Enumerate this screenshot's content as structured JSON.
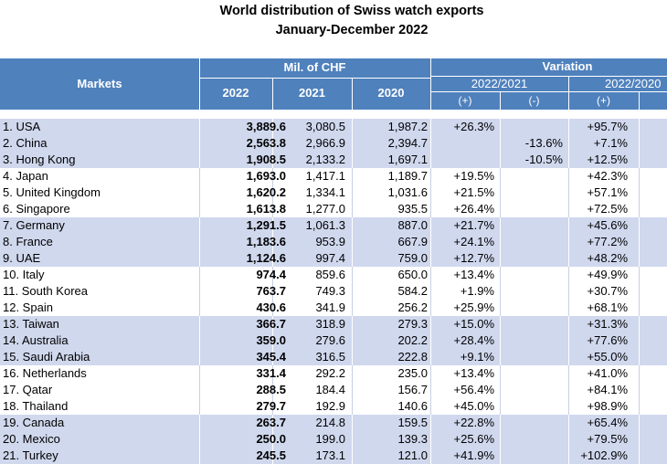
{
  "title": "World distribution of Swiss watch exports",
  "subtitle": "January-December 2022",
  "header": {
    "markets": "Markets",
    "mil_chf": "Mil. of CHF",
    "variation": "Variation",
    "year_2022": "2022",
    "year_2021": "2021",
    "year_2020": "2020",
    "var_2022_2021": "2022/2021",
    "var_2022_2020": "2022/2020",
    "plus": "(+)",
    "minus": "(-)"
  },
  "rows": [
    {
      "market": "1. USA",
      "v2022": "3,889.6",
      "v2021": "3,080.5",
      "v2020": "1,987.2",
      "pos_21": "+26.3%",
      "neg_21": "",
      "pos_20": "+95.7%"
    },
    {
      "market": "2. China",
      "v2022": "2,563.8",
      "v2021": "2,966.9",
      "v2020": "2,394.7",
      "pos_21": "",
      "neg_21": "-13.6%",
      "pos_20": "+7.1%"
    },
    {
      "market": "3. Hong Kong",
      "v2022": "1,908.5",
      "v2021": "2,133.2",
      "v2020": "1,697.1",
      "pos_21": "",
      "neg_21": "-10.5%",
      "pos_20": "+12.5%"
    },
    {
      "market": "4. Japan",
      "v2022": "1,693.0",
      "v2021": "1,417.1",
      "v2020": "1,189.7",
      "pos_21": "+19.5%",
      "neg_21": "",
      "pos_20": "+42.3%"
    },
    {
      "market": "5. United Kingdom",
      "v2022": "1,620.2",
      "v2021": "1,334.1",
      "v2020": "1,031.6",
      "pos_21": "+21.5%",
      "neg_21": "",
      "pos_20": "+57.1%"
    },
    {
      "market": "6. Singapore",
      "v2022": "1,613.8",
      "v2021": "1,277.0",
      "v2020": "935.5",
      "pos_21": "+26.4%",
      "neg_21": "",
      "pos_20": "+72.5%"
    },
    {
      "market": "7. Germany",
      "v2022": "1,291.5",
      "v2021": "1,061.3",
      "v2020": "887.0",
      "pos_21": "+21.7%",
      "neg_21": "",
      "pos_20": "+45.6%"
    },
    {
      "market": "8. France",
      "v2022": "1,183.6",
      "v2021": "953.9",
      "v2020": "667.9",
      "pos_21": "+24.1%",
      "neg_21": "",
      "pos_20": "+77.2%"
    },
    {
      "market": "9. UAE",
      "v2022": "1,124.6",
      "v2021": "997.4",
      "v2020": "759.0",
      "pos_21": "+12.7%",
      "neg_21": "",
      "pos_20": "+48.2%"
    },
    {
      "market": "10. Italy",
      "v2022": "974.4",
      "v2021": "859.6",
      "v2020": "650.0",
      "pos_21": "+13.4%",
      "neg_21": "",
      "pos_20": "+49.9%"
    },
    {
      "market": "11. South Korea",
      "v2022": "763.7",
      "v2021": "749.3",
      "v2020": "584.2",
      "pos_21": "+1.9%",
      "neg_21": "",
      "pos_20": "+30.7%"
    },
    {
      "market": "12. Spain",
      "v2022": "430.6",
      "v2021": "341.9",
      "v2020": "256.2",
      "pos_21": "+25.9%",
      "neg_21": "",
      "pos_20": "+68.1%"
    },
    {
      "market": "13. Taiwan",
      "v2022": "366.7",
      "v2021": "318.9",
      "v2020": "279.3",
      "pos_21": "+15.0%",
      "neg_21": "",
      "pos_20": "+31.3%"
    },
    {
      "market": "14. Australia",
      "v2022": "359.0",
      "v2021": "279.6",
      "v2020": "202.2",
      "pos_21": "+28.4%",
      "neg_21": "",
      "pos_20": "+77.6%"
    },
    {
      "market": "15. Saudi Arabia",
      "v2022": "345.4",
      "v2021": "316.5",
      "v2020": "222.8",
      "pos_21": "+9.1%",
      "neg_21": "",
      "pos_20": "+55.0%"
    },
    {
      "market": "16. Netherlands",
      "v2022": "331.4",
      "v2021": "292.2",
      "v2020": "235.0",
      "pos_21": "+13.4%",
      "neg_21": "",
      "pos_20": "+41.0%"
    },
    {
      "market": "17. Qatar",
      "v2022": "288.5",
      "v2021": "184.4",
      "v2020": "156.7",
      "pos_21": "+56.4%",
      "neg_21": "",
      "pos_20": "+84.1%"
    },
    {
      "market": "18. Thailand",
      "v2022": "279.7",
      "v2021": "192.9",
      "v2020": "140.6",
      "pos_21": "+45.0%",
      "neg_21": "",
      "pos_20": "+98.9%"
    },
    {
      "market": "19. Canada",
      "v2022": "263.7",
      "v2021": "214.8",
      "v2020": "159.5",
      "pos_21": "+22.8%",
      "neg_21": "",
      "pos_20": "+65.4%"
    },
    {
      "market": "20. Mexico",
      "v2022": "250.0",
      "v2021": "199.0",
      "v2020": "139.3",
      "pos_21": "+25.6%",
      "neg_21": "",
      "pos_20": "+79.5%"
    },
    {
      "market": "21. Turkey",
      "v2022": "245.5",
      "v2021": "173.1",
      "v2020": "121.0",
      "pos_21": "+41.9%",
      "neg_21": "",
      "pos_20": "+102.9%"
    }
  ]
}
